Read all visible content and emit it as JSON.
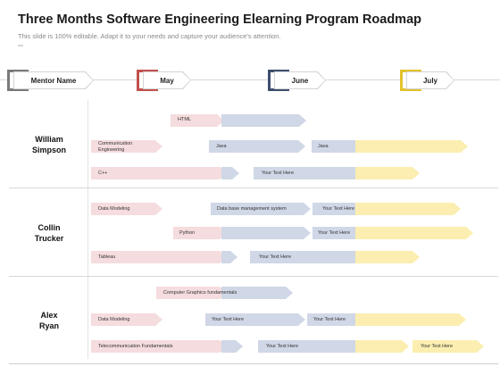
{
  "header": {
    "title": "Three Months Software Engineering Elearning Program Roadmap",
    "subtitle": "This slide is 100% editable. Adapt it to your needs and capture your audience's attention."
  },
  "columns": [
    {
      "label": "Mentor Name",
      "color": "#7a7a7a"
    },
    {
      "label": "May",
      "color": "#c0504d"
    },
    {
      "label": "June",
      "color": "#3d4e6e"
    },
    {
      "label": "July",
      "color": "#e2c22a"
    }
  ],
  "people": [
    {
      "name_line1": "William",
      "name_line2": "Simpson"
    },
    {
      "name_line1": "Collin",
      "name_line2": "Trucker"
    },
    {
      "name_line1": "Alex",
      "name_line2": "Ryan"
    }
  ],
  "tasks": {
    "william": {
      "html": "HTML",
      "comm_line1": "Communication",
      "comm_line2": "Engineering",
      "java1": "Java",
      "java2": "Java",
      "cpp": "C++",
      "text1": "Your Text Here"
    },
    "collin": {
      "data_modeling": "Data Modeling",
      "dbms": "Data base management system",
      "text1": "Your Text Here",
      "python": "Python",
      "text2": "Your Text Here",
      "tableau": "Tableau",
      "text3": "Your Text Here"
    },
    "alex": {
      "cg": "Computer Graphics fundamentals",
      "data_modeling": "Data Modeling",
      "text1": "Your Text Here",
      "text2": "Your Text Here",
      "telecom": "Telecommunication Fundamentals",
      "text3": "Your Text Here",
      "text4": "Your Text Here"
    }
  },
  "colors": {
    "may_bar": "#f5dcde",
    "june_bar": "#d0d7e6",
    "july_bar": "#fbeeb0"
  }
}
